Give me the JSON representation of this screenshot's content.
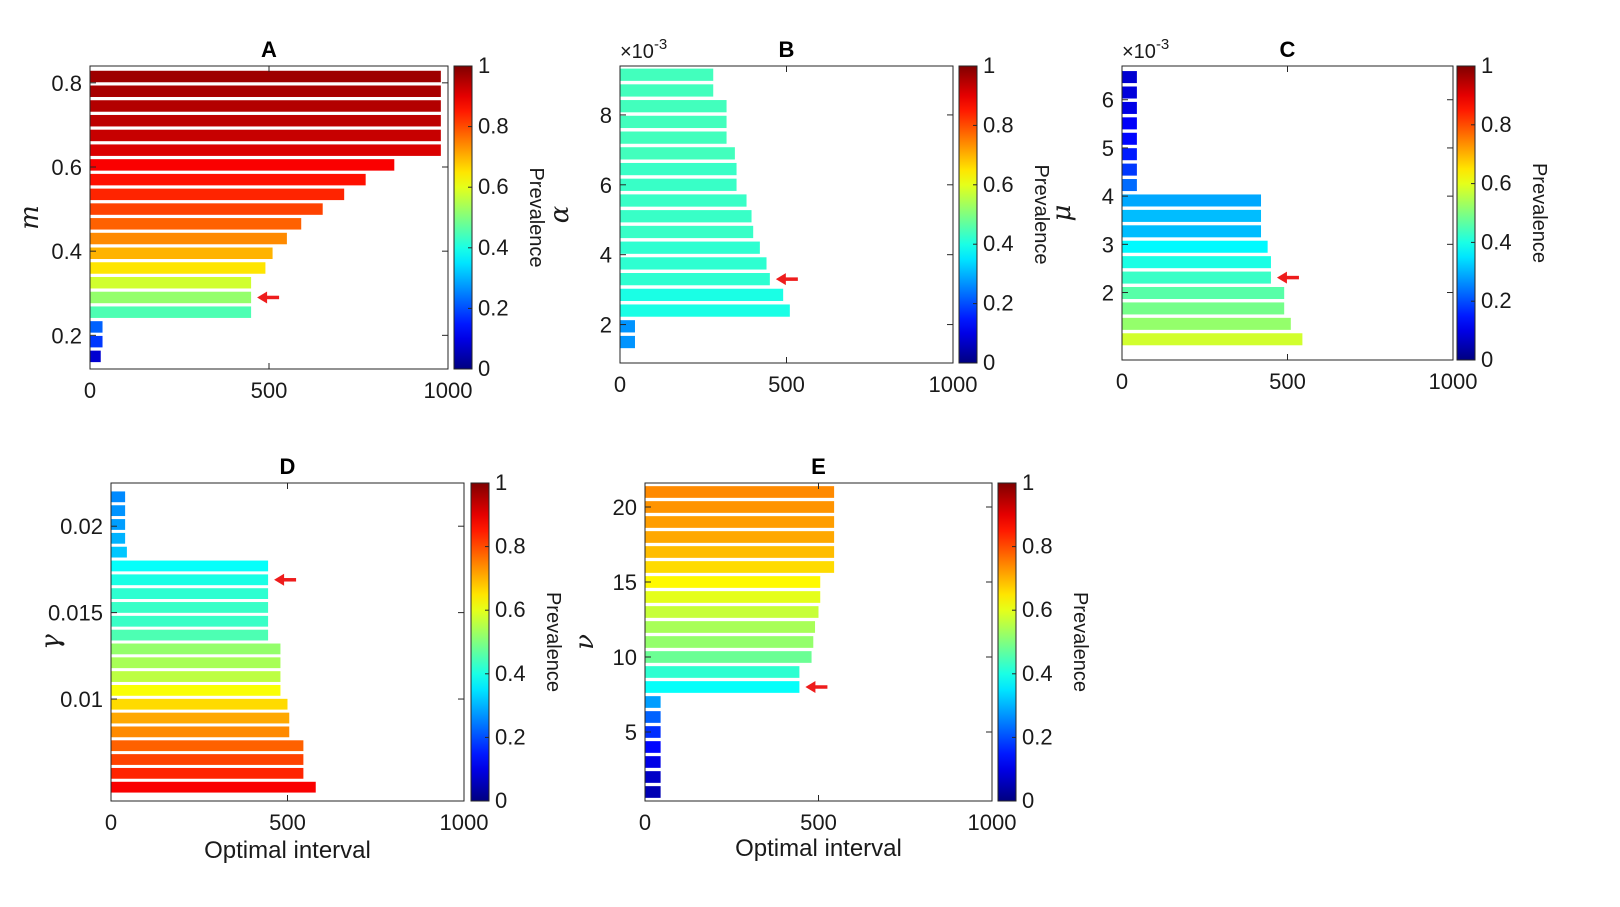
{
  "chart_data": [
    {
      "type": "bar",
      "orientation": "horizontal",
      "title": "A",
      "ylabel": "m",
      "xlabel": "",
      "xlim": [
        0,
        1000
      ],
      "ylim": [
        0.12,
        0.84
      ],
      "xticks": [
        0,
        500,
        1000
      ],
      "yticks": [
        0.2,
        0.4,
        0.6,
        0.8
      ],
      "ytick_labels": [
        "0.2",
        "0.4",
        "0.6",
        "0.8"
      ],
      "y": [
        0.15,
        0.185,
        0.22,
        0.255,
        0.29,
        0.325,
        0.36,
        0.395,
        0.43,
        0.465,
        0.5,
        0.535,
        0.57,
        0.605,
        0.64,
        0.675,
        0.71,
        0.745,
        0.78,
        0.815
      ],
      "values": [
        30,
        35,
        35,
        450,
        450,
        450,
        490,
        510,
        550,
        590,
        650,
        710,
        770,
        850,
        980,
        980,
        980,
        980,
        980,
        980
      ],
      "prevalence": [
        0.08,
        0.18,
        0.22,
        0.45,
        0.52,
        0.58,
        0.65,
        0.7,
        0.74,
        0.78,
        0.81,
        0.84,
        0.86,
        0.88,
        0.91,
        0.93,
        0.94,
        0.95,
        0.96,
        0.97
      ],
      "arrow_at": 0.29,
      "colorbar": {
        "label": "Prevalence",
        "ticks": [
          "0",
          "0.2",
          "0.4",
          "0.6",
          "0.8",
          "1"
        ]
      }
    },
    {
      "type": "bar",
      "orientation": "horizontal",
      "title": "B",
      "ylabel": "α",
      "xlabel": "",
      "axis_multiplier": "×10-3",
      "xlim": [
        0,
        1000
      ],
      "ylim": [
        0.0009,
        0.0094
      ],
      "xticks": [
        0,
        500,
        1000
      ],
      "yticks": [
        0.002,
        0.004,
        0.006,
        0.008
      ],
      "ytick_labels": [
        "2",
        "4",
        "6",
        "8"
      ],
      "y": [
        0.0015,
        0.00195,
        0.0024,
        0.00285,
        0.0033,
        0.00375,
        0.0042,
        0.00465,
        0.0051,
        0.00555,
        0.006,
        0.00645,
        0.0069,
        0.00735,
        0.0078,
        0.00825,
        0.0087,
        0.00915
      ],
      "values": [
        45,
        45,
        510,
        490,
        450,
        440,
        420,
        400,
        395,
        380,
        350,
        350,
        345,
        320,
        320,
        320,
        280,
        280
      ],
      "prevalence": [
        0.27,
        0.27,
        0.4,
        0.4,
        0.42,
        0.42,
        0.42,
        0.43,
        0.43,
        0.43,
        0.43,
        0.43,
        0.44,
        0.44,
        0.44,
        0.44,
        0.44,
        0.44
      ],
      "arrow_at": 0.0033,
      "colorbar": {
        "label": "Prevalence",
        "ticks": [
          "0",
          "0.2",
          "0.4",
          "0.6",
          "0.8",
          "1"
        ]
      }
    },
    {
      "type": "bar",
      "orientation": "horizontal",
      "title": "C",
      "ylabel": "μ",
      "xlabel": "",
      "axis_multiplier": "×10-3",
      "xlim": [
        0,
        1000
      ],
      "ylim": [
        0.0006,
        0.0067
      ],
      "xticks": [
        0,
        500,
        1000
      ],
      "yticks": [
        0.002,
        0.003,
        0.004,
        0.005,
        0.006
      ],
      "ytick_labels": [
        "2",
        "3",
        "4",
        "5",
        "6"
      ],
      "y": [
        0.00103,
        0.00135,
        0.00167,
        0.00199,
        0.00231,
        0.00263,
        0.00295,
        0.00327,
        0.00359,
        0.00391,
        0.00423,
        0.00455,
        0.00487,
        0.00519,
        0.00551,
        0.00583,
        0.00615,
        0.00647
      ],
      "values": [
        545,
        510,
        490,
        490,
        450,
        450,
        440,
        420,
        420,
        420,
        45,
        45,
        45,
        45,
        45,
        45,
        45,
        45
      ],
      "prevalence": [
        0.58,
        0.52,
        0.49,
        0.46,
        0.43,
        0.4,
        0.37,
        0.31,
        0.31,
        0.29,
        0.23,
        0.18,
        0.15,
        0.13,
        0.12,
        0.1,
        0.09,
        0.08
      ],
      "arrow_at": 0.00231,
      "colorbar": {
        "label": "Prevalence",
        "ticks": [
          "0",
          "0.2",
          "0.4",
          "0.6",
          "0.8",
          "1"
        ]
      }
    },
    {
      "type": "bar",
      "orientation": "horizontal",
      "title": "D",
      "ylabel": "γ",
      "xlabel": "Optimal interval",
      "xlim": [
        0,
        1000
      ],
      "ylim": [
        0.0041,
        0.0225
      ],
      "xticks": [
        0,
        500,
        1000
      ],
      "yticks": [
        0.01,
        0.015,
        0.02
      ],
      "ytick_labels": [
        "0.01",
        "0.015",
        "0.02"
      ],
      "y": [
        0.0049,
        0.0057,
        0.0065,
        0.0073,
        0.0081,
        0.0089,
        0.0097,
        0.0105,
        0.0113,
        0.0121,
        0.0129,
        0.0137,
        0.0145,
        0.0153,
        0.0161,
        0.0169,
        0.0177,
        0.0185,
        0.0193,
        0.0201,
        0.0209,
        0.0217
      ],
      "values": [
        580,
        545,
        545,
        545,
        505,
        505,
        500,
        480,
        480,
        480,
        480,
        445,
        445,
        445,
        445,
        445,
        445,
        45,
        40,
        40,
        40,
        40
      ],
      "prevalence": [
        0.88,
        0.84,
        0.81,
        0.78,
        0.74,
        0.71,
        0.66,
        0.62,
        0.56,
        0.54,
        0.52,
        0.45,
        0.43,
        0.43,
        0.42,
        0.4,
        0.38,
        0.32,
        0.3,
        0.28,
        0.27,
        0.26
      ],
      "arrow_at": 0.0169,
      "colorbar": {
        "label": "Prevalence",
        "ticks": [
          "0",
          "0.2",
          "0.4",
          "0.6",
          "0.8",
          "1"
        ]
      }
    },
    {
      "type": "bar",
      "orientation": "horizontal",
      "title": "E",
      "ylabel": "ν",
      "xlabel": "Optimal interval",
      "xlim": [
        0,
        1000
      ],
      "ylim": [
        0.4,
        21.6
      ],
      "xticks": [
        0,
        500,
        1000
      ],
      "yticks": [
        5,
        10,
        15,
        20
      ],
      "ytick_labels": [
        "5",
        "10",
        "15",
        "20"
      ],
      "y": [
        1,
        2,
        3,
        4,
        5,
        6,
        7,
        8,
        9,
        10,
        11,
        12,
        13,
        14,
        15,
        16,
        17,
        18,
        19,
        20,
        21
      ],
      "values": [
        45,
        45,
        45,
        45,
        45,
        45,
        45,
        445,
        445,
        480,
        485,
        490,
        500,
        505,
        505,
        545,
        545,
        545,
        545,
        545,
        545
      ],
      "prevalence": [
        0.05,
        0.07,
        0.1,
        0.13,
        0.17,
        0.22,
        0.28,
        0.38,
        0.42,
        0.48,
        0.52,
        0.54,
        0.57,
        0.6,
        0.63,
        0.66,
        0.69,
        0.71,
        0.72,
        0.73,
        0.74
      ],
      "arrow_at": 8,
      "colorbar": {
        "label": "Prevalence",
        "ticks": [
          "0",
          "0.2",
          "0.4",
          "0.6",
          "0.8",
          "1"
        ]
      }
    }
  ],
  "colors": {
    "arrow": "#ee1c1c",
    "frame": "#262626",
    "background": "#ffffff"
  }
}
